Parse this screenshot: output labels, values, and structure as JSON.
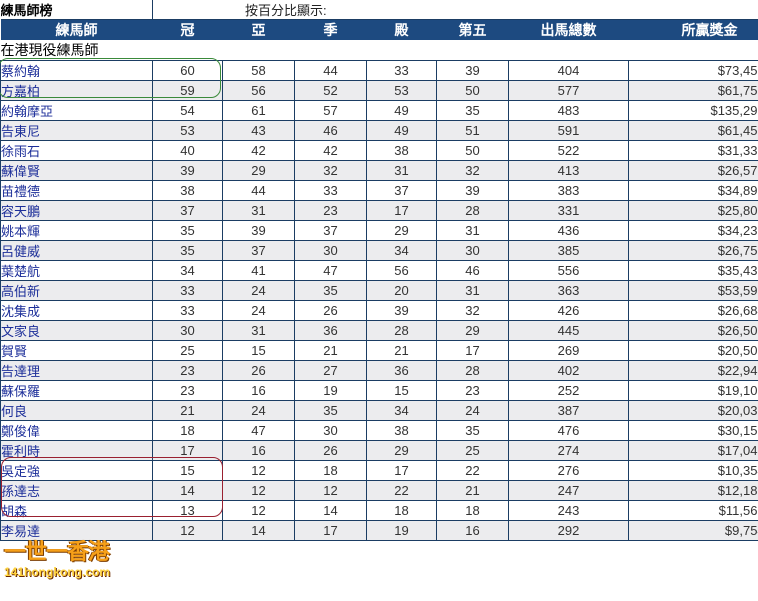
{
  "title": "練馬師榜",
  "note": "按百分比顯示:",
  "columns": [
    "練馬師",
    "冠",
    "亞",
    "季",
    "殿",
    "第五",
    "出馬總數",
    "所贏獎金"
  ],
  "section": "在港現役練馬師",
  "logo": {
    "main": "一世一香港",
    "site": "141hongkong.com"
  },
  "colors": {
    "header": "#1d4a80",
    "grid": "#1b3d63",
    "name_text": "#1c2e99",
    "highlight_top": "#3a8a3a",
    "highlight_bottom": "#9a2030"
  },
  "rows": [
    [
      "蔡約翰",
      "60",
      "58",
      "44",
      "33",
      "39",
      "404",
      "$73,459,000"
    ],
    [
      "方嘉柏",
      "59",
      "56",
      "52",
      "53",
      "50",
      "577",
      "$61,753,638"
    ],
    [
      "約翰摩亞",
      "54",
      "61",
      "57",
      "49",
      "35",
      "483",
      "$135,296,375"
    ],
    [
      "告東尼",
      "53",
      "43",
      "46",
      "49",
      "51",
      "591",
      "$61,455,125"
    ],
    [
      "徐雨石",
      "40",
      "42",
      "42",
      "38",
      "50",
      "522",
      "$31,339,125"
    ],
    [
      "蘇偉賢",
      "39",
      "29",
      "32",
      "31",
      "32",
      "413",
      "$26,575,750"
    ],
    [
      "苗禮德",
      "38",
      "44",
      "33",
      "37",
      "39",
      "383",
      "$34,898,625"
    ],
    [
      "容天鵬",
      "37",
      "31",
      "23",
      "17",
      "28",
      "331",
      "$25,806,750"
    ],
    [
      "姚本輝",
      "35",
      "39",
      "37",
      "29",
      "31",
      "436",
      "$34,235,513"
    ],
    [
      "呂健威",
      "35",
      "37",
      "30",
      "34",
      "30",
      "385",
      "$26,757,675"
    ],
    [
      "葉楚航",
      "34",
      "41",
      "47",
      "56",
      "46",
      "556",
      "$35,431,400"
    ],
    [
      "高伯新",
      "33",
      "24",
      "35",
      "20",
      "31",
      "363",
      "$53,590,750"
    ],
    [
      "沈集成",
      "33",
      "24",
      "26",
      "39",
      "32",
      "426",
      "$26,684,350"
    ],
    [
      "文家良",
      "30",
      "31",
      "36",
      "28",
      "29",
      "445",
      "$26,509,813"
    ],
    [
      "賀賢",
      "25",
      "15",
      "21",
      "21",
      "17",
      "269",
      "$20,500,125"
    ],
    [
      "告達理",
      "23",
      "26",
      "27",
      "36",
      "28",
      "402",
      "$22,945,750"
    ],
    [
      "蘇保羅",
      "23",
      "16",
      "19",
      "15",
      "23",
      "252",
      "$19,100,950"
    ],
    [
      "何良",
      "21",
      "24",
      "35",
      "34",
      "24",
      "387",
      "$20,036,600"
    ],
    [
      "鄭俊偉",
      "18",
      "47",
      "30",
      "38",
      "35",
      "476",
      "$30,155,000"
    ],
    [
      "霍利時",
      "17",
      "16",
      "26",
      "29",
      "25",
      "274",
      "$17,045,750"
    ],
    [
      "吳定強",
      "15",
      "12",
      "18",
      "17",
      "22",
      "276",
      "$10,354,000"
    ],
    [
      "孫達志",
      "14",
      "12",
      "12",
      "22",
      "21",
      "247",
      "$12,188,313"
    ],
    [
      "胡森",
      "13",
      "12",
      "14",
      "18",
      "18",
      "243",
      "$11,569,250"
    ],
    [
      "李易達",
      "12",
      "14",
      "17",
      "19",
      "16",
      "292",
      "$9,754,375"
    ]
  ]
}
